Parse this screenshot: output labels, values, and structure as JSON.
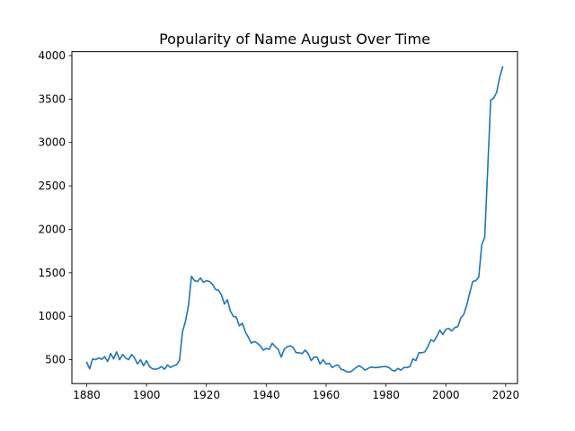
{
  "chart_data": {
    "type": "line",
    "title": "Popularity of Name August Over Time",
    "xlabel": "",
    "ylabel": "",
    "xlim": [
      1875.05,
      2023.95
    ],
    "ylim": [
      225,
      4045
    ],
    "x_ticks": [
      1880,
      1900,
      1920,
      1940,
      1960,
      1980,
      2000,
      2020
    ],
    "y_ticks": [
      500,
      1000,
      1500,
      2000,
      2500,
      3000,
      3500,
      4000
    ],
    "grid": false,
    "legend": "none",
    "line_color": "#1f77b4",
    "series": [
      {
        "x": [
          1880,
          1881,
          1882,
          1883,
          1884,
          1885,
          1886,
          1887,
          1888,
          1889,
          1890,
          1891,
          1892,
          1893,
          1894,
          1895,
          1896,
          1897,
          1898,
          1899,
          1900,
          1901,
          1902,
          1903,
          1904,
          1905,
          1906,
          1907,
          1908,
          1909,
          1910,
          1911,
          1912,
          1913,
          1914,
          1915,
          1916,
          1917,
          1918,
          1919,
          1920,
          1921,
          1922,
          1923,
          1924,
          1925,
          1926,
          1927,
          1928,
          1929,
          1930,
          1931,
          1932,
          1933,
          1934,
          1935,
          1936,
          1937,
          1938,
          1939,
          1940,
          1941,
          1942,
          1943,
          1944,
          1945,
          1946,
          1947,
          1948,
          1949,
          1950,
          1951,
          1952,
          1953,
          1954,
          1955,
          1956,
          1957,
          1958,
          1959,
          1960,
          1961,
          1962,
          1963,
          1964,
          1965,
          1966,
          1967,
          1968,
          1969,
          1970,
          1971,
          1972,
          1973,
          1974,
          1975,
          1976,
          1977,
          1978,
          1979,
          1980,
          1981,
          1982,
          1983,
          1984,
          1985,
          1986,
          1987,
          1988,
          1989,
          1990,
          1991,
          1992,
          1993,
          1994,
          1995,
          1996,
          1997,
          1998,
          1999,
          2000,
          2001,
          2002,
          2003,
          2004,
          2005,
          2006,
          2007,
          2008,
          2009,
          2010,
          2011,
          2012,
          2013,
          2014,
          2015,
          2016,
          2017,
          2018,
          2019
        ],
        "values": [
          470,
          395,
          510,
          500,
          520,
          505,
          535,
          480,
          570,
          510,
          590,
          500,
          560,
          520,
          500,
          560,
          520,
          450,
          500,
          430,
          490,
          420,
          395,
          390,
          400,
          420,
          390,
          440,
          410,
          430,
          440,
          490,
          820,
          940,
          1120,
          1460,
          1410,
          1400,
          1440,
          1390,
          1410,
          1400,
          1370,
          1310,
          1300,
          1250,
          1140,
          1190,
          1060,
          1000,
          990,
          890,
          920,
          820,
          760,
          690,
          710,
          690,
          660,
          610,
          630,
          620,
          690,
          650,
          620,
          530,
          620,
          650,
          660,
          640,
          580,
          580,
          570,
          610,
          570,
          490,
          530,
          530,
          450,
          500,
          450,
          460,
          410,
          430,
          440,
          390,
          380,
          360,
          360,
          380,
          410,
          430,
          410,
          380,
          400,
          415,
          410,
          410,
          415,
          420,
          420,
          410,
          380,
          370,
          400,
          380,
          410,
          410,
          420,
          510,
          490,
          580,
          580,
          590,
          650,
          730,
          710,
          770,
          840,
          790,
          850,
          860,
          830,
          870,
          880,
          980,
          1020,
          1130,
          1270,
          1400,
          1410,
          1450,
          1820,
          1910,
          2700,
          3490,
          3510,
          3580,
          3750,
          3870
        ]
      }
    ]
  }
}
